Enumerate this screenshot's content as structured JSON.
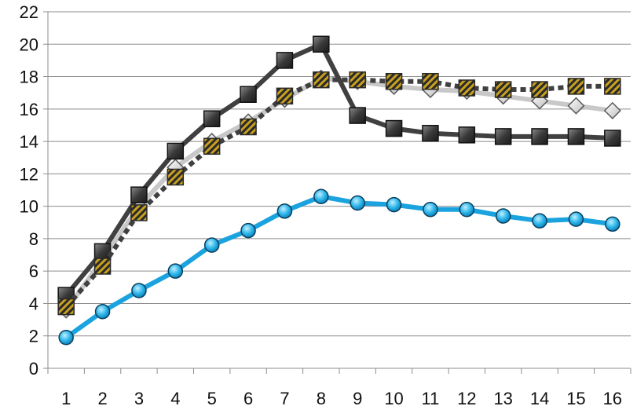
{
  "chart_data": {
    "type": "line",
    "x": [
      1,
      2,
      3,
      4,
      5,
      6,
      7,
      8,
      9,
      10,
      11,
      12,
      13,
      14,
      15,
      16
    ],
    "ylim": [
      0,
      22
    ],
    "ytick_step": 2,
    "y_ticks": [
      "0",
      "2",
      "4",
      "6",
      "8",
      "10",
      "12",
      "14",
      "16",
      "18",
      "20",
      "22"
    ],
    "x_ticks": [
      "1",
      "2",
      "3",
      "4",
      "5",
      "6",
      "7",
      "8",
      "9",
      "10",
      "11",
      "12",
      "13",
      "14",
      "15",
      "16"
    ],
    "grid": "horizontal",
    "legend": "none",
    "title": "",
    "xlabel": "",
    "ylabel": "",
    "series": [
      {
        "key": "light-gray-diamond",
        "marker": "diamond",
        "color": "#c8c8c8",
        "line_style": "solid",
        "values": [
          3.6,
          6.7,
          10.0,
          12.4,
          14.0,
          15.2,
          16.6,
          17.9,
          17.7,
          17.4,
          17.2,
          17.1,
          16.8,
          16.5,
          16.2,
          15.9
        ]
      },
      {
        "key": "dark-square",
        "marker": "square",
        "color": "#404040",
        "line_style": "solid",
        "values": [
          4.5,
          7.2,
          10.7,
          13.4,
          15.4,
          16.9,
          19.0,
          20.0,
          15.6,
          14.8,
          14.5,
          14.4,
          14.3,
          14.3,
          14.3,
          14.2
        ]
      },
      {
        "key": "hatched-square",
        "marker": "hatched-square",
        "color": "#404040",
        "marker_fill": "#c8a020",
        "line_style": "dotted",
        "values": [
          3.8,
          6.3,
          9.6,
          11.8,
          13.7,
          14.9,
          16.8,
          17.8,
          17.8,
          17.7,
          17.7,
          17.3,
          17.2,
          17.2,
          17.4,
          17.4
        ]
      },
      {
        "key": "blue-circle",
        "marker": "circle",
        "color": "#1aa3de",
        "line_style": "solid",
        "values": [
          1.9,
          3.5,
          4.8,
          6.0,
          7.6,
          8.5,
          9.7,
          10.6,
          10.2,
          10.1,
          9.8,
          9.8,
          9.4,
          9.1,
          9.2,
          8.9
        ]
      }
    ]
  }
}
